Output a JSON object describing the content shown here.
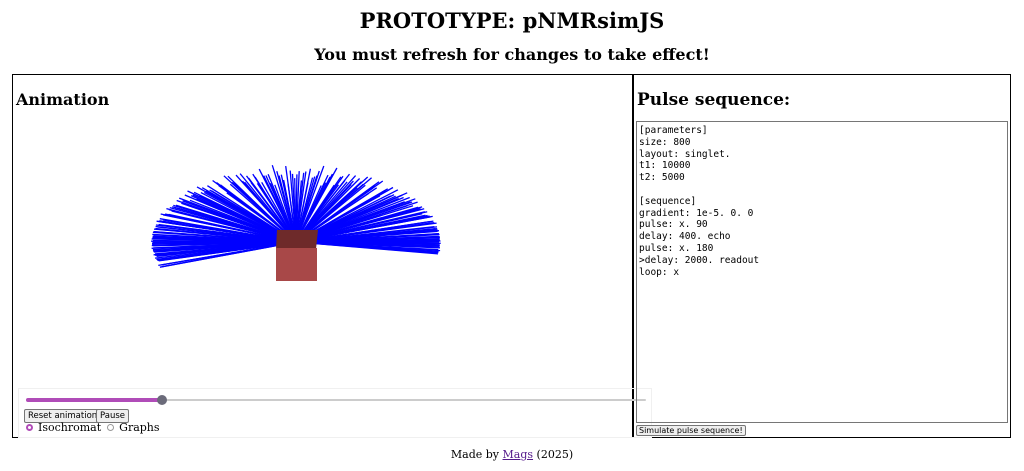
{
  "page": {
    "title": "PROTOTYPE: pNMRsimJS",
    "subtitle": "You must refresh for changes to take effect!"
  },
  "animation": {
    "heading": "Animation",
    "scene": {
      "vector_color": "#0000ff",
      "cube_top_color": "#6e2a2a",
      "cube_front_color": "#a84848"
    },
    "timeline_progress": 0.22,
    "accent_color": "#b04cb8",
    "buttons": {
      "reset_label": "Reset animation!",
      "pause_label": "Pause"
    },
    "view_mode": {
      "options": [
        "Isochromat",
        "Graphs"
      ],
      "selected": "Isochromat"
    }
  },
  "pulse_sequence": {
    "heading": "Pulse sequence:",
    "editor_text": "[parameters]\nsize: 800\nlayout: singlet.\nt1: 10000\nt2: 5000\n\n[sequence]\ngradient: 1e-5. 0. 0\npulse: x. 90\ndelay: 400. echo\npulse: x. 180\n>delay: 2000. readout\nloop: x",
    "simulate_label": "Simulate pulse sequence!"
  },
  "footer": {
    "prefix": "Made by",
    "author": "Mags",
    "suffix": "(2025)"
  }
}
